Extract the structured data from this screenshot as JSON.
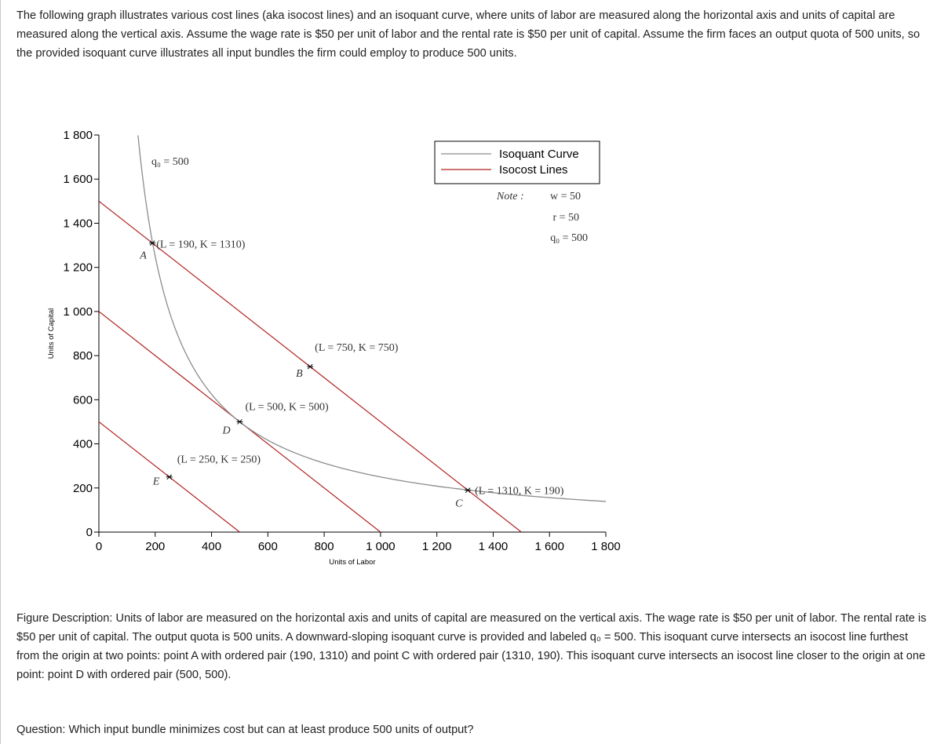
{
  "intro_text": "The following graph illustrates various cost lines (aka isocost lines) and an isoquant curve, where units of labor are measured along the horizontal axis and units of capital are measured along the vertical axis.  Assume the wage rate is $50 per unit of labor and the rental rate is $50 per unit of capital. Assume the firm faces an output quota of 500 units, so the provided isoquant curve illustrates all input bundles the firm could employ to produce 500 units.",
  "description_text": "Figure Description: Units of labor are measured on the horizontal axis and units of capital are measured on the vertical axis. The wage rate is $50 per unit of labor. The rental rate is $50 per unit of capital. The output quota is 500 units. A downward-sloping isoquant curve is provided and labeled q₀ = 500. This isoquant curve intersects an isocost line furthest from the origin at two points: point A with ordered pair (190, 1310) and point C with ordered pair (1310, 190). This isoquant curve intersects an isocost line closer to the origin at one point: point D with ordered pair (500, 500).",
  "question_text": "Question: Which input bundle minimizes cost but can at least produce 500 units of output?",
  "colors": {
    "isoquant": "#8c8c8c",
    "isocost": "#b22222",
    "axis": "#000000"
  },
  "chart_data": {
    "type": "line",
    "xlabel": "Units of Labor",
    "ylabel": "Units of Capital",
    "xlim": [
      0,
      1800
    ],
    "ylim": [
      0,
      1800
    ],
    "x_ticks": [
      0,
      200,
      400,
      600,
      800,
      1000,
      1200,
      1400,
      1600,
      1800
    ],
    "y_ticks": [
      0,
      200,
      400,
      600,
      800,
      1000,
      1200,
      1400,
      1600,
      1800
    ],
    "x_tick_labels": [
      "0",
      "200",
      "400",
      "600",
      "800",
      "1 000",
      "1 200",
      "1 400",
      "1 600",
      "1 800"
    ],
    "y_tick_labels": [
      "0",
      "200",
      "400",
      "600",
      "800",
      "1 000",
      "1 200",
      "1 400",
      "1 600",
      "1 800"
    ],
    "legend": {
      "position": "top-right",
      "entries": [
        "Isoquant Curve",
        "Isocost Lines"
      ]
    },
    "notes": [
      "Note :",
      "w = 50",
      "r = 50",
      "q₀ = 500"
    ],
    "isoquant": {
      "label": "q₀ = 500",
      "k_times_l": 250000,
      "x_range": [
        139,
        1800
      ]
    },
    "isocost_lines": [
      {
        "intercept": 500,
        "values": [
          [
            0,
            500
          ],
          [
            500,
            0
          ]
        ]
      },
      {
        "intercept": 1000,
        "values": [
          [
            0,
            1000
          ],
          [
            1000,
            0
          ]
        ]
      },
      {
        "intercept": 1500,
        "values": [
          [
            0,
            1500
          ],
          [
            1500,
            0
          ]
        ]
      }
    ],
    "points": [
      {
        "name": "A",
        "x": 190,
        "y": 1310,
        "label": "(L = 190, K = 1310)"
      },
      {
        "name": "B",
        "x": 750,
        "y": 750,
        "label": "(L = 750, K = 750)"
      },
      {
        "name": "C",
        "x": 1310,
        "y": 190,
        "label": "(L = 1310, K = 190)"
      },
      {
        "name": "D",
        "x": 500,
        "y": 500,
        "label": "(L = 500, K = 500)"
      },
      {
        "name": "E",
        "x": 250,
        "y": 250,
        "label": "(L = 250, K = 250)"
      }
    ]
  }
}
